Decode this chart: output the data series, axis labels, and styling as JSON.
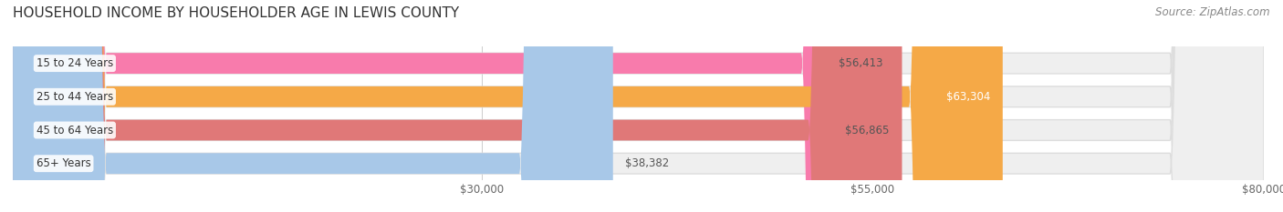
{
  "title": "HOUSEHOLD INCOME BY HOUSEHOLDER AGE IN LEWIS COUNTY",
  "source": "Source: ZipAtlas.com",
  "categories": [
    "15 to 24 Years",
    "25 to 44 Years",
    "45 to 64 Years",
    "65+ Years"
  ],
  "values": [
    56413,
    63304,
    56865,
    38382
  ],
  "bar_colors": [
    "#F87BAC",
    "#F5A947",
    "#E07878",
    "#A8C8E8"
  ],
  "bar_bg_color": "#EFEFEF",
  "label_colors": [
    "#555555",
    "#FFFFFF",
    "#555555",
    "#555555"
  ],
  "xmin": 0,
  "xmax": 80000,
  "xticks": [
    30000,
    55000,
    80000
  ],
  "xtick_labels": [
    "$30,000",
    "$55,000",
    "$80,000"
  ],
  "title_fontsize": 11,
  "source_fontsize": 8.5,
  "tick_fontsize": 8.5,
  "label_fontsize": 8.5,
  "cat_fontsize": 8.5,
  "background_color": "#FFFFFF"
}
